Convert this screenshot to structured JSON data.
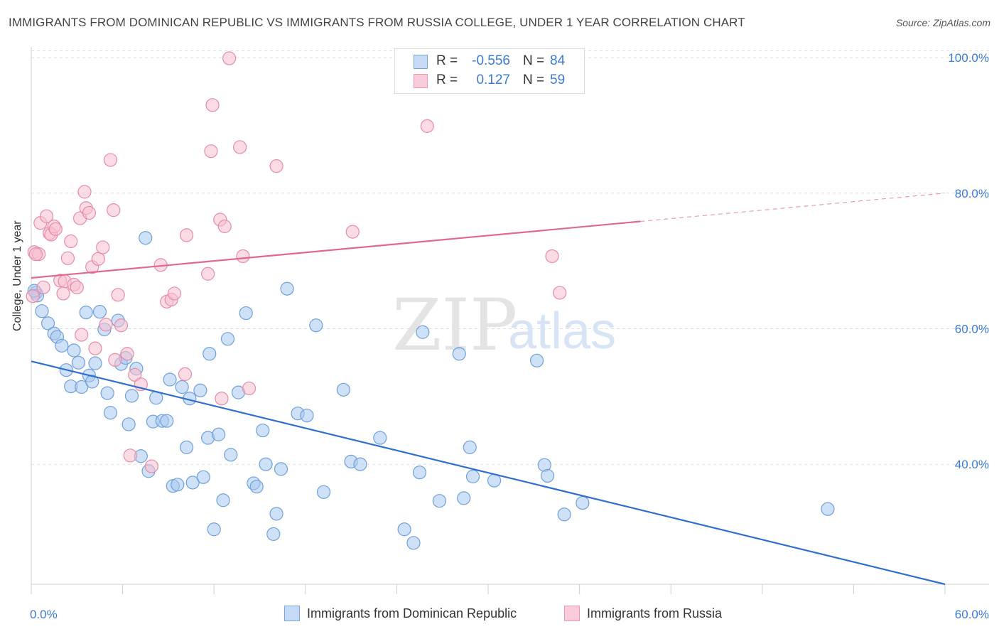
{
  "title": "IMMIGRANTS FROM DOMINICAN REPUBLIC VS IMMIGRANTS FROM RUSSIA COLLEGE, UNDER 1 YEAR CORRELATION CHART",
  "source": "Source: ZipAtlas.com",
  "watermark": {
    "zip": "ZIP",
    "atlas": "atlas"
  },
  "legend": {
    "rows": [
      {
        "r_label": "R =",
        "r_value": "-0.556",
        "n_label": "N =",
        "n_value": "84",
        "color": "#a8c8f0",
        "border": "#6fa0dc"
      },
      {
        "r_label": "R =",
        "r_value": "0.127",
        "n_label": "N =",
        "n_value": "59",
        "color": "#f7bfd0",
        "border": "#e88aa8"
      }
    ]
  },
  "chart_data": {
    "type": "scatter",
    "xlabel": "",
    "ylabel": "College, Under 1 year",
    "xlim": [
      0,
      60
    ],
    "ylim": [
      20,
      102
    ],
    "x_tick_labels": [
      "0.0%",
      "60.0%"
    ],
    "y_ticks": [
      40,
      60,
      80,
      100
    ],
    "y_tick_labels": [
      "40.0%",
      "60.0%",
      "80.0%",
      "100.0%"
    ],
    "grid": "horizontal dashed",
    "series": [
      {
        "name": "Immigrants from Dominican Republic",
        "color": "#a8c8f0",
        "edge": "#6fa0dc",
        "line_color": "#2f6fcf",
        "trend": {
          "x": [
            0,
            60
          ],
          "y": [
            55.2,
            22.3
          ],
          "solid_to": 60
        },
        "points": [
          [
            0.3,
            65.3
          ],
          [
            0.7,
            62.6
          ],
          [
            1.1,
            60.8
          ],
          [
            1.5,
            59.3
          ],
          [
            1.7,
            58.8
          ],
          [
            2.0,
            57.5
          ],
          [
            2.3,
            53.9
          ],
          [
            2.6,
            51.5
          ],
          [
            2.8,
            56.8
          ],
          [
            3.1,
            55.0
          ],
          [
            3.3,
            51.4
          ],
          [
            3.6,
            62.4
          ],
          [
            3.8,
            53.1
          ],
          [
            4.0,
            52.2
          ],
          [
            4.2,
            54.9
          ],
          [
            4.5,
            62.5
          ],
          [
            4.8,
            59.9
          ],
          [
            5.0,
            50.5
          ],
          [
            5.2,
            47.6
          ],
          [
            5.7,
            61.2
          ],
          [
            5.9,
            54.8
          ],
          [
            6.2,
            55.7
          ],
          [
            6.4,
            45.9
          ],
          [
            6.6,
            50.1
          ],
          [
            6.9,
            54.1
          ],
          [
            7.2,
            41.2
          ],
          [
            7.5,
            73.4
          ],
          [
            7.7,
            39.0
          ],
          [
            8.0,
            46.3
          ],
          [
            8.2,
            49.8
          ],
          [
            8.6,
            46.4
          ],
          [
            8.9,
            46.4
          ],
          [
            9.1,
            52.5
          ],
          [
            9.3,
            36.8
          ],
          [
            9.6,
            37.0
          ],
          [
            9.9,
            51.4
          ],
          [
            10.2,
            42.5
          ],
          [
            10.4,
            49.7
          ],
          [
            10.6,
            37.3
          ],
          [
            11.1,
            50.9
          ],
          [
            11.3,
            38.1
          ],
          [
            11.6,
            43.9
          ],
          [
            11.7,
            56.3
          ],
          [
            12.0,
            30.4
          ],
          [
            12.3,
            44.4
          ],
          [
            12.6,
            34.7
          ],
          [
            12.9,
            58.5
          ],
          [
            13.1,
            41.4
          ],
          [
            13.6,
            50.6
          ],
          [
            14.1,
            62.3
          ],
          [
            14.6,
            37.2
          ],
          [
            14.8,
            36.7
          ],
          [
            15.2,
            45.0
          ],
          [
            15.4,
            40.0
          ],
          [
            15.9,
            29.7
          ],
          [
            16.1,
            32.7
          ],
          [
            16.4,
            39.3
          ],
          [
            16.8,
            65.9
          ],
          [
            17.5,
            47.5
          ],
          [
            18.1,
            47.2
          ],
          [
            18.7,
            60.5
          ],
          [
            19.2,
            35.9
          ],
          [
            20.5,
            51.0
          ],
          [
            21.0,
            40.4
          ],
          [
            21.6,
            40.0
          ],
          [
            22.9,
            43.9
          ],
          [
            24.5,
            30.4
          ],
          [
            25.1,
            28.4
          ],
          [
            25.5,
            38.8
          ],
          [
            25.7,
            59.5
          ],
          [
            26.8,
            34.6
          ],
          [
            28.1,
            56.3
          ],
          [
            28.4,
            35.0
          ],
          [
            28.8,
            42.5
          ],
          [
            29.0,
            38.2
          ],
          [
            30.4,
            37.6
          ],
          [
            33.2,
            55.3
          ],
          [
            33.7,
            39.9
          ],
          [
            33.9,
            38.3
          ],
          [
            35.0,
            32.6
          ],
          [
            36.2,
            34.3
          ],
          [
            52.3,
            33.4
          ],
          [
            0.4,
            64.9
          ],
          [
            0.2,
            65.6
          ]
        ]
      },
      {
        "name": "Immigrants from Russia",
        "color": "#f7bfd0",
        "edge": "#e88aa8",
        "line_color": "#e06890",
        "trend": {
          "x": [
            0,
            60
          ],
          "y": [
            67.5,
            80.0
          ],
          "solid_to": 40
        },
        "points": [
          [
            0.2,
            71.3
          ],
          [
            0.5,
            71.0
          ],
          [
            0.6,
            75.6
          ],
          [
            0.8,
            66.1
          ],
          [
            1.0,
            76.6
          ],
          [
            1.2,
            74.1
          ],
          [
            1.3,
            73.9
          ],
          [
            1.5,
            75.1
          ],
          [
            1.6,
            74.7
          ],
          [
            1.9,
            67.1
          ],
          [
            2.1,
            65.2
          ],
          [
            2.2,
            67.0
          ],
          [
            2.4,
            70.4
          ],
          [
            2.6,
            72.9
          ],
          [
            2.8,
            66.5
          ],
          [
            3.0,
            66.1
          ],
          [
            3.2,
            76.3
          ],
          [
            3.3,
            59.1
          ],
          [
            3.5,
            80.2
          ],
          [
            3.6,
            77.8
          ],
          [
            3.8,
            77.1
          ],
          [
            4.0,
            69.1
          ],
          [
            4.2,
            57.1
          ],
          [
            4.4,
            70.3
          ],
          [
            4.7,
            72.0
          ],
          [
            4.9,
            60.6
          ],
          [
            5.2,
            84.9
          ],
          [
            5.4,
            77.5
          ],
          [
            5.5,
            55.4
          ],
          [
            5.7,
            65.0
          ],
          [
            5.9,
            60.5
          ],
          [
            6.3,
            56.3
          ],
          [
            6.5,
            41.3
          ],
          [
            6.8,
            53.2
          ],
          [
            7.2,
            51.8
          ],
          [
            7.9,
            39.7
          ],
          [
            8.5,
            69.4
          ],
          [
            8.9,
            64.0
          ],
          [
            9.2,
            64.3
          ],
          [
            9.4,
            65.2
          ],
          [
            10.1,
            53.3
          ],
          [
            10.2,
            73.8
          ],
          [
            11.6,
            68.1
          ],
          [
            11.8,
            86.2
          ],
          [
            11.9,
            93.0
          ],
          [
            12.4,
            76.1
          ],
          [
            12.5,
            49.7
          ],
          [
            12.7,
            75.1
          ],
          [
            13.0,
            99.9
          ],
          [
            13.7,
            86.8
          ],
          [
            13.9,
            70.7
          ],
          [
            14.3,
            51.2
          ],
          [
            16.1,
            84.0
          ],
          [
            21.1,
            74.3
          ],
          [
            26.0,
            89.9
          ],
          [
            34.2,
            70.7
          ],
          [
            34.7,
            65.3
          ],
          [
            0.1,
            64.8
          ],
          [
            0.3,
            71.0
          ]
        ]
      }
    ]
  }
}
